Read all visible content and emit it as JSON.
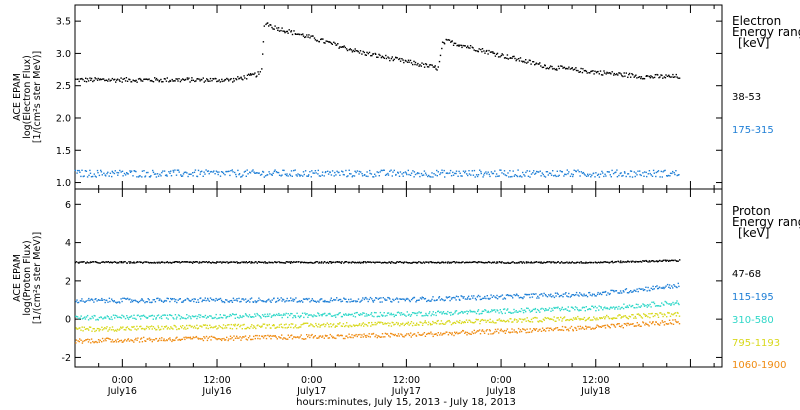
{
  "chart_data": [
    {
      "type": "scatter",
      "ylabel": [
        "ACE EPAM",
        "log(Electron Flux)",
        "[1/(cm²s ster MeV)]"
      ],
      "ylim": [
        0.9,
        3.75
      ],
      "yticks": [
        "1.0",
        "1.5",
        "2.0",
        "2.5",
        "3.0",
        "3.5"
      ],
      "xlim": [
        -6,
        76
      ],
      "legend": {
        "title": [
          "Electron",
          "Energy range",
          "[keV]"
        ],
        "placement": "right"
      },
      "series": [
        {
          "name": "38-53",
          "color": "#000000",
          "x": [
            -6,
            0,
            6,
            10,
            14,
            17.5,
            18,
            19,
            24,
            30,
            36,
            40,
            40.5,
            41,
            48,
            54,
            60,
            66,
            70.5
          ],
          "y": [
            2.6,
            2.6,
            2.6,
            2.6,
            2.6,
            2.7,
            3.5,
            3.42,
            3.25,
            3.03,
            2.88,
            2.78,
            3.15,
            3.2,
            2.98,
            2.8,
            2.72,
            2.65,
            2.65
          ]
        },
        {
          "name": "175-315",
          "color": "#1f7fd6",
          "x": [
            -6,
            70.5
          ],
          "y": [
            1.15,
            1.15
          ]
        }
      ]
    },
    {
      "type": "scatter",
      "ylabel": [
        "ACE EPAM",
        "log(Proton Flux)",
        "[1/(cm²s ster MeV)]"
      ],
      "ylim": [
        -2.5,
        6.8
      ],
      "yticks": [
        "-2",
        "0",
        "2",
        "4",
        "6"
      ],
      "xlim": [
        -6,
        76
      ],
      "legend": {
        "title": [
          "Proton",
          "Energy range",
          "[keV]"
        ],
        "placement": "right"
      },
      "series": [
        {
          "name": "47-68",
          "color": "#000000",
          "x": [
            -6,
            60,
            70.5
          ],
          "y": [
            3.0,
            3.0,
            3.1
          ]
        },
        {
          "name": "115-195",
          "color": "#1f7fd6",
          "x": [
            -6,
            36,
            60,
            70.5
          ],
          "y": [
            1.0,
            1.05,
            1.35,
            1.8
          ]
        },
        {
          "name": "310-580",
          "color": "#2fd7c8",
          "x": [
            -6,
            36,
            60,
            70.5
          ],
          "y": [
            0.1,
            0.3,
            0.6,
            0.9
          ]
        },
        {
          "name": "795-1193",
          "color": "#d8d81c",
          "x": [
            -6,
            36,
            60,
            70.5
          ],
          "y": [
            -0.5,
            -0.2,
            0.1,
            0.3
          ]
        },
        {
          "name": "1060-1900",
          "color": "#ef8b12",
          "x": [
            -6,
            36,
            60,
            70.5
          ],
          "y": [
            -1.1,
            -0.8,
            -0.4,
            -0.1
          ]
        }
      ]
    }
  ],
  "x_axis": {
    "ticks": [
      {
        "x": 0,
        "time": "0:00",
        "date": "July16"
      },
      {
        "x": 12,
        "time": "12:00",
        "date": "July16"
      },
      {
        "x": 24,
        "time": "0:00",
        "date": "July17"
      },
      {
        "x": 36,
        "time": "12:00",
        "date": "July17"
      },
      {
        "x": 48,
        "time": "0:00",
        "date": "July18"
      },
      {
        "x": 60,
        "time": "12:00",
        "date": "July18"
      }
    ],
    "title": "hours:minutes, July 15, 2013 - July 18, 2013"
  }
}
